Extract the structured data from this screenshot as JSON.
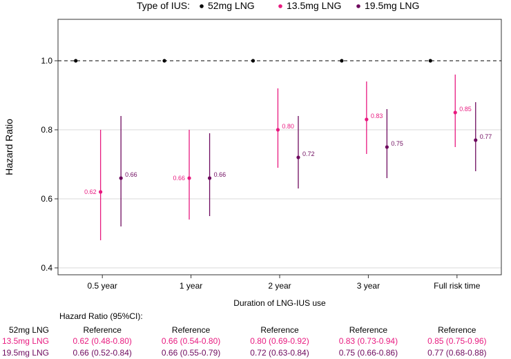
{
  "chart_data": {
    "type": "scatter",
    "subtype": "forest-plot",
    "legend": {
      "title": "Type of IUS:",
      "entries": [
        {
          "name": "52mg LNG",
          "color": "#000000"
        },
        {
          "name": "13.5mg LNG",
          "color": "#e8197f"
        },
        {
          "name": "19.5mg LNG",
          "color": "#6e0a5e"
        }
      ],
      "position": "top"
    },
    "categories": [
      "0.5 year",
      "1 year",
      "2 year",
      "3 year",
      "Full risk time"
    ],
    "xlabel": "Duration of LNG-IUS use",
    "ylabel": "Hazard Ratio",
    "ylim": [
      0.38,
      1.12
    ],
    "yticks": [
      0.4,
      0.6,
      0.8,
      1.0
    ],
    "ytick_labels": [
      "0.4",
      "0.6",
      "0.8",
      "1.0"
    ],
    "reference_line": 1.0,
    "series": [
      {
        "name": "52mg LNG",
        "color": "#000000",
        "values": [
          1.0,
          1.0,
          1.0,
          1.0,
          1.0
        ]
      },
      {
        "name": "13.5mg LNG",
        "color": "#e8197f",
        "values": [
          0.62,
          0.66,
          0.8,
          0.83,
          0.85
        ],
        "lower": [
          0.48,
          0.54,
          0.69,
          0.73,
          0.75
        ],
        "upper": [
          0.8,
          0.8,
          0.92,
          0.94,
          0.96
        ],
        "labels": [
          "0.62",
          "0.66",
          "0.80",
          "0.83",
          "0.85"
        ]
      },
      {
        "name": "19.5mg LNG",
        "color": "#6e0a5e",
        "values": [
          0.66,
          0.66,
          0.72,
          0.75,
          0.77
        ],
        "lower": [
          0.52,
          0.55,
          0.63,
          0.66,
          0.68
        ],
        "upper": [
          0.84,
          0.79,
          0.84,
          0.86,
          0.88
        ],
        "labels": [
          "0.66",
          "0.66",
          "0.72",
          "0.75",
          "0.77"
        ]
      }
    ]
  },
  "table": {
    "header": "Hazard Ratio (95%CI):",
    "rows": [
      {
        "label": "52mg LNG",
        "color": "#000000",
        "cells": [
          "Reference",
          "Reference",
          "Reference",
          "Reference",
          "Reference"
        ]
      },
      {
        "label": "13.5mg LNG",
        "color": "#e8197f",
        "cells": [
          "0.62 (0.48-0.80)",
          "0.66 (0.54-0.80)",
          "0.80 (0.69-0.92)",
          "0.83 (0.73-0.94)",
          "0.85 (0.75-0.96)"
        ]
      },
      {
        "label": "19.5mg LNG",
        "color": "#6e0a5e",
        "cells": [
          "0.66 (0.52-0.84)",
          "0.66 (0.55-0.79)",
          "0.72 (0.63-0.84)",
          "0.75 (0.66-0.86)",
          "0.77 (0.68-0.88)"
        ]
      }
    ]
  }
}
